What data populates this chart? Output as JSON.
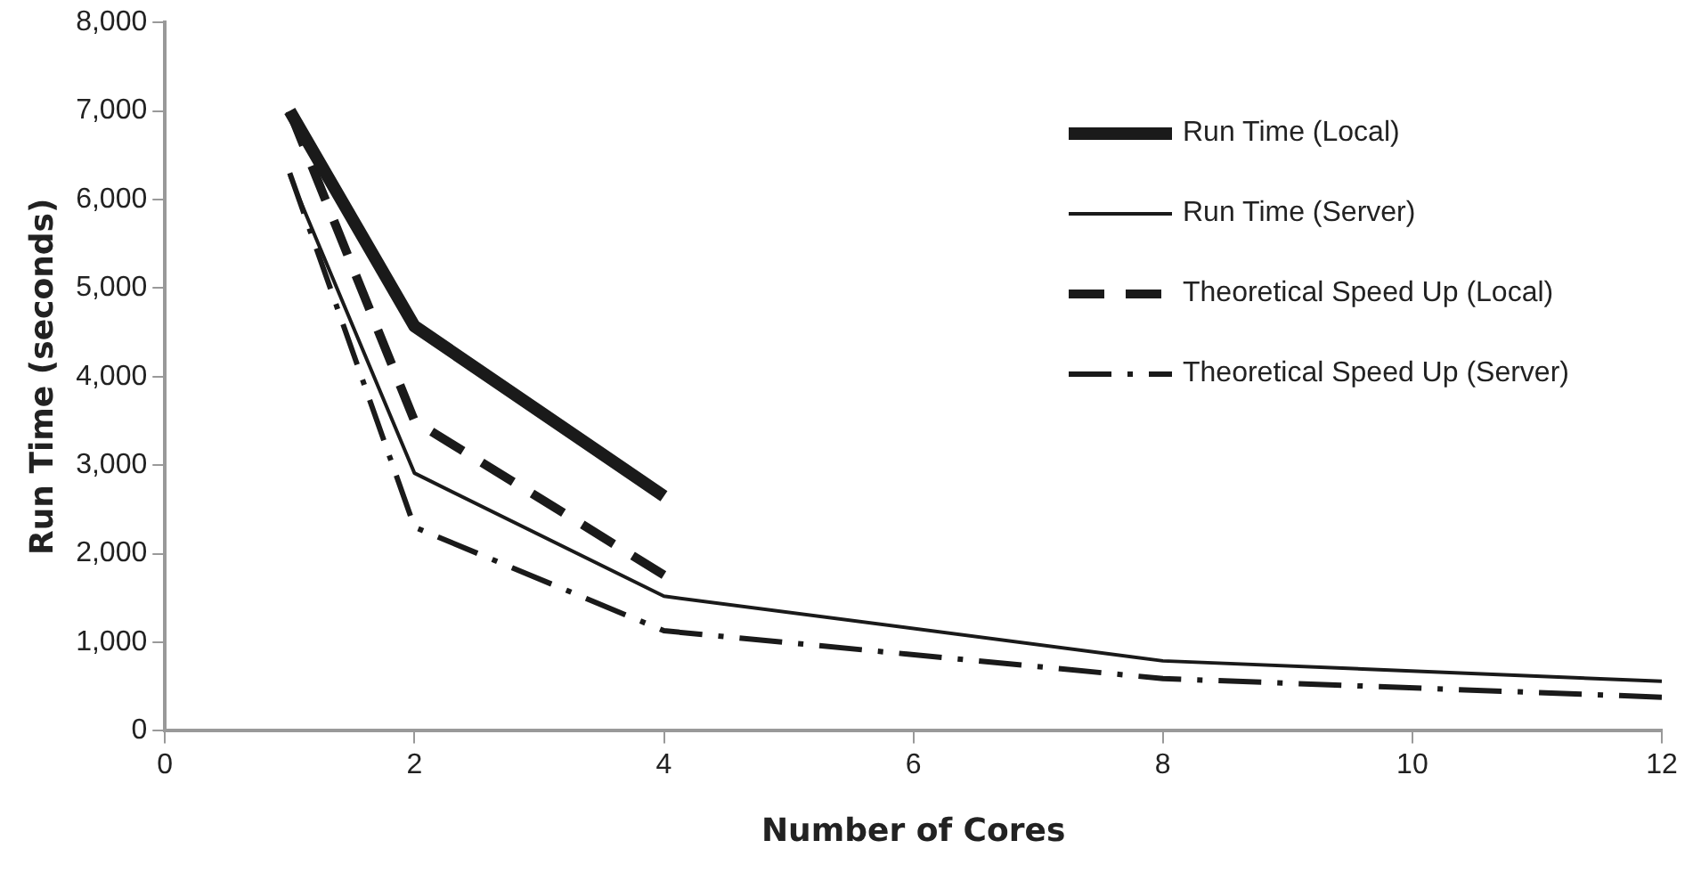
{
  "chart_data": {
    "type": "line",
    "xlabel": "Number of Cores",
    "ylabel": "Run Time (seconds)",
    "xlim": [
      0,
      12
    ],
    "xticks": [
      0,
      2,
      4,
      6,
      8,
      10,
      12
    ],
    "ylim": [
      0,
      8000
    ],
    "yticks": [
      0,
      {
        "value": 1000,
        "label": "1,000"
      },
      {
        "value": 2000,
        "label": "2,000"
      },
      {
        "value": 3000,
        "label": "3,000"
      },
      {
        "value": 4000,
        "label": "4,000"
      },
      {
        "value": 5000,
        "label": "5,000"
      },
      {
        "value": 6000,
        "label": "6,000"
      },
      {
        "value": 7000,
        "label": "7,000"
      },
      {
        "value": 8000,
        "label": "8,000"
      }
    ],
    "grid": false,
    "legend": "top right",
    "marker": "none",
    "series": [
      {
        "name": "Run Time (Local)",
        "color": "#1a1a1a",
        "line_style": "solid",
        "x": [
          1,
          2,
          4
        ],
        "values": [
          7000,
          4570,
          2650
        ]
      },
      {
        "name": "Run Time (Server)",
        "color": "#1a1a1a",
        "line_style": "solid",
        "x": [
          1,
          2,
          4,
          8,
          12
        ],
        "values": [
          6270,
          2910,
          1520,
          790,
          560
        ]
      },
      {
        "name": "Theoretical Speed Up (Local)",
        "color": "#1a1a1a",
        "line_style": "dashed",
        "x": [
          1,
          2,
          4
        ],
        "values": [
          7000,
          3500,
          1760
        ]
      },
      {
        "name": "Theoretical Speed Up (Server)",
        "color": "#1a1a1a",
        "line_style": "dashdot",
        "x": [
          1,
          2,
          4,
          8,
          12
        ],
        "values": [
          6300,
          2300,
          1130,
          590,
          380
        ]
      }
    ]
  }
}
